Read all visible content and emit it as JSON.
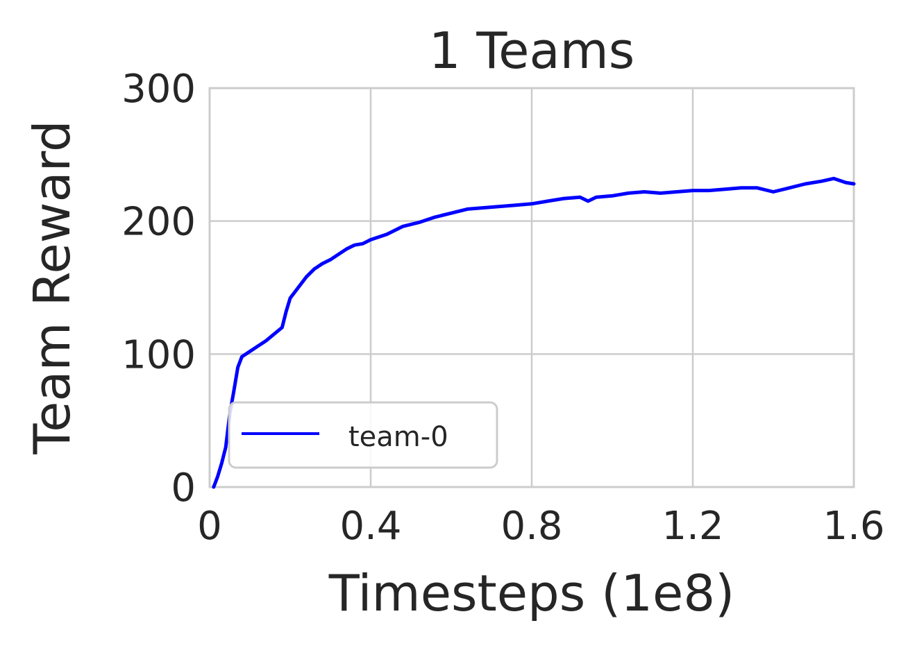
{
  "chart_data": {
    "type": "line",
    "title": "1 Teams",
    "xlabel": "Timesteps (1e8)",
    "ylabel": "Team Reward",
    "xlim": [
      0,
      1.6
    ],
    "ylim": [
      0,
      300
    ],
    "xticks": [
      0,
      0.4,
      0.8,
      1.2,
      1.6
    ],
    "xtick_labels": [
      "0",
      "0.4",
      "0.8",
      "1.2",
      "1.6"
    ],
    "yticks": [
      0,
      100,
      200,
      300
    ],
    "ytick_labels": [
      "0",
      "100",
      "200",
      "300"
    ],
    "grid": true,
    "legend": {
      "position": "lower-left"
    },
    "series": [
      {
        "name": "team-0",
        "color": "#0000ff",
        "x": [
          0.01,
          0.02,
          0.03,
          0.04,
          0.05,
          0.06,
          0.07,
          0.08,
          0.1,
          0.12,
          0.14,
          0.16,
          0.18,
          0.19,
          0.2,
          0.22,
          0.24,
          0.26,
          0.28,
          0.3,
          0.32,
          0.34,
          0.36,
          0.38,
          0.4,
          0.44,
          0.48,
          0.52,
          0.56,
          0.6,
          0.64,
          0.68,
          0.72,
          0.76,
          0.8,
          0.84,
          0.88,
          0.92,
          0.94,
          0.96,
          1.0,
          1.04,
          1.08,
          1.12,
          1.16,
          1.2,
          1.24,
          1.28,
          1.32,
          1.36,
          1.4,
          1.44,
          1.48,
          1.52,
          1.55,
          1.58,
          1.6
        ],
        "values": [
          0,
          8,
          18,
          30,
          55,
          72,
          90,
          98,
          102,
          106,
          110,
          115,
          120,
          132,
          142,
          150,
          158,
          164,
          168,
          171,
          175,
          179,
          182,
          183,
          186,
          190,
          196,
          199,
          203,
          206,
          209,
          210,
          211,
          212,
          213,
          215,
          217,
          218,
          215,
          218,
          219,
          221,
          222,
          221,
          222,
          223,
          223,
          224,
          225,
          225,
          222,
          225,
          228,
          230,
          232,
          229,
          228
        ]
      }
    ]
  }
}
